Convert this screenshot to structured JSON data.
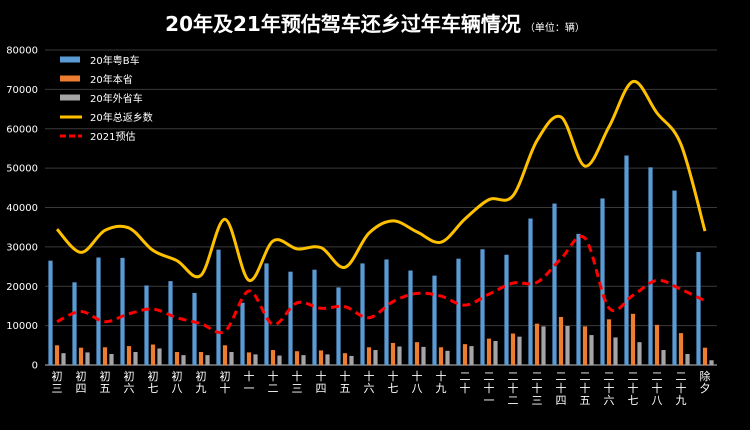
{
  "chart_data": {
    "type": "bar",
    "title": "20年及21年预估驾车还乡过年车辆情况",
    "unit_note": "（单位：辆）",
    "ylim": [
      0,
      80000
    ],
    "yticks": [
      0,
      10000,
      20000,
      30000,
      40000,
      50000,
      60000,
      70000,
      80000
    ],
    "categories": [
      "初三",
      "初四",
      "初五",
      "初六",
      "初七",
      "初八",
      "初九",
      "初十",
      "十一",
      "十二",
      "十三",
      "十四",
      "十五",
      "十六",
      "十七",
      "十八",
      "十九",
      "二十",
      "二十一",
      "二十二",
      "二十三",
      "二十四",
      "二十五",
      "二十六",
      "二十七",
      "二十八",
      "二十九",
      "除夕"
    ],
    "series": [
      {
        "name": "20年粤B车",
        "type": "bar",
        "color": "#5b9bd5",
        "values": [
          26500,
          21000,
          27300,
          27200,
          20200,
          21300,
          18300,
          29300,
          15800,
          25800,
          23700,
          24200,
          19700,
          25800,
          26800,
          24000,
          22700,
          27000,
          29400,
          28000,
          37200,
          41000,
          33300,
          42300,
          53200,
          50200,
          44300,
          28700
        ]
      },
      {
        "name": "20年本省",
        "type": "bar",
        "color": "#ed7d31",
        "values": [
          5000,
          4400,
          4500,
          4800,
          5200,
          3300,
          3300,
          5000,
          3200,
          3800,
          3500,
          3700,
          3000,
          4500,
          5600,
          5800,
          4500,
          5300,
          6700,
          8000,
          10500,
          12200,
          9800,
          11600,
          13000,
          10200,
          8100,
          4400
        ]
      },
      {
        "name": "20年外省车",
        "type": "bar",
        "color": "#a5a5a5",
        "values": [
          3000,
          3200,
          2800,
          3300,
          4200,
          2500,
          2500,
          3300,
          2700,
          2400,
          2500,
          2700,
          2300,
          3800,
          4700,
          4600,
          3600,
          4800,
          6100,
          7200,
          9800,
          9900,
          7600,
          7000,
          5800,
          3800,
          2800,
          1200
        ]
      },
      {
        "name": "20年总返乡数",
        "type": "line",
        "color": "#ffc000",
        "values": [
          34500,
          28600,
          34200,
          34800,
          29100,
          26500,
          22800,
          37000,
          21500,
          31500,
          29500,
          29800,
          24800,
          33500,
          36600,
          33800,
          31200,
          37100,
          42000,
          43000,
          57000,
          63000,
          50500,
          60500,
          72000,
          64000,
          56000,
          34000
        ]
      },
      {
        "name": "2021预估",
        "type": "dashed-line",
        "color": "#ff0000",
        "values": [
          11000,
          13600,
          11000,
          13000,
          14200,
          12000,
          10500,
          8600,
          18800,
          10300,
          15800,
          14400,
          14800,
          12000,
          16100,
          18200,
          17500,
          15200,
          18000,
          20800,
          21000,
          27000,
          32200,
          14500,
          17700,
          21500,
          19200,
          16300
        ]
      }
    ]
  }
}
